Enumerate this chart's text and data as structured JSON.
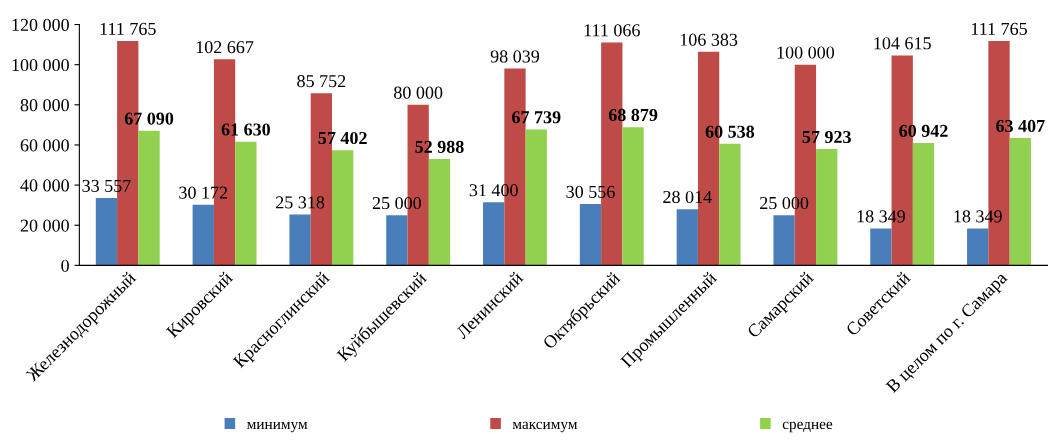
{
  "chart_data": {
    "type": "bar",
    "categories": [
      "Железнодорожный",
      "Кировский",
      "Красноглинский",
      "Куйбышевский",
      "Ленинский",
      "Октябрьский",
      "Промышленный",
      "Самарский",
      "Советский",
      "В целом по г. Самара"
    ],
    "series": [
      {
        "name": "минимум",
        "color": "#4a7ebb",
        "values": [
          33557,
          30172,
          25318,
          25000,
          31400,
          30556,
          28014,
          25000,
          18349,
          18349
        ],
        "value_labels": [
          "33 557",
          "30 172",
          "25 318",
          "25 000",
          "31 400",
          "30 556",
          "28 014",
          "25 000",
          "18 349",
          "18 349"
        ]
      },
      {
        "name": "максимум",
        "color": "#be4b48",
        "values": [
          111765,
          102667,
          85752,
          80000,
          98039,
          111066,
          106383,
          100000,
          104615,
          111765
        ],
        "value_labels": [
          "111 765",
          "102 667",
          "85 752",
          "80 000",
          "98 039",
          "111 066",
          "106 383",
          "100 000",
          "104 615",
          "111 765"
        ]
      },
      {
        "name": "среднее",
        "color": "#92d050",
        "values": [
          67090,
          61630,
          57402,
          52988,
          67739,
          68879,
          60538,
          57923,
          60942,
          63407
        ],
        "value_labels": [
          "67 090",
          "61 630",
          "57 402",
          "52 988",
          "67 739",
          "68 879",
          "60 538",
          "57 923",
          "60 942",
          "63 407"
        ]
      }
    ],
    "ylim": [
      0,
      120000
    ],
    "yticks": [
      {
        "value": 0,
        "label": "0"
      },
      {
        "value": 20000,
        "label": "20 000"
      },
      {
        "value": 40000,
        "label": "40 000"
      },
      {
        "value": 60000,
        "label": "60 000"
      },
      {
        "value": 80000,
        "label": "80 000"
      },
      {
        "value": 100000,
        "label": "100 000"
      },
      {
        "value": 120000,
        "label": "120 000"
      }
    ],
    "grid": false,
    "legend": "bottom"
  }
}
